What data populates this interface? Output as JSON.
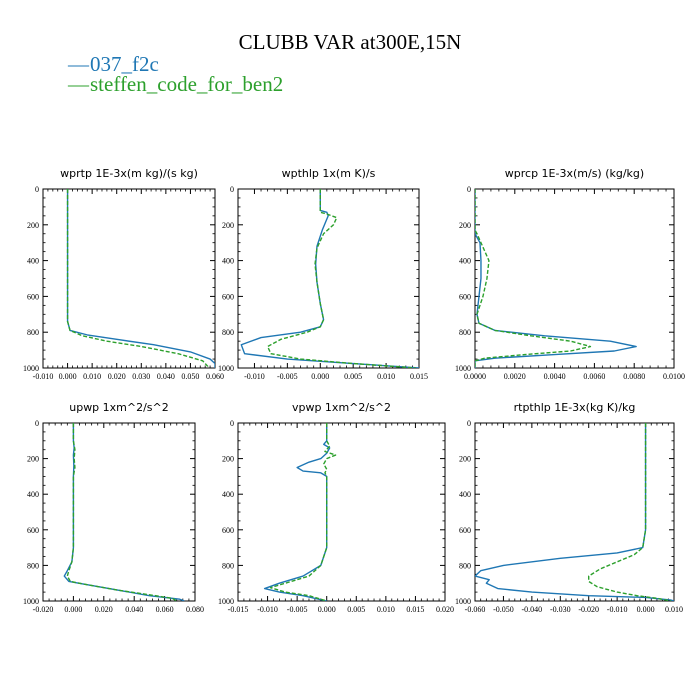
{
  "title": "CLUBB VAR at300E,15N",
  "legend": [
    {
      "label": "037_f2c",
      "color": "#1f77b4"
    },
    {
      "label": "steffen_code_for_ben2",
      "color": "#2ca02c"
    }
  ],
  "chart_data": [
    {
      "type": "line",
      "title": "wprtp  1E-3x(m kg)/(s kg)",
      "xlim": [
        -0.01,
        0.06
      ],
      "ylim": [
        1000,
        0
      ],
      "xticks": [
        "-0.010",
        "0.000",
        "0.010",
        "0.020",
        "0.030",
        "0.040",
        "0.050",
        "0.060"
      ],
      "yticks": [
        "0",
        "200",
        "400",
        "600",
        "800",
        "1000"
      ],
      "series": [
        {
          "name": "037_f2c",
          "color": "#1f77b4",
          "dash": false,
          "points": [
            [
              0,
              0
            ],
            [
              0,
              200
            ],
            [
              0,
              400
            ],
            [
              0,
              600
            ],
            [
              0,
              740
            ],
            [
              0.001,
              790
            ],
            [
              0.008,
              815
            ],
            [
              0.02,
              840
            ],
            [
              0.035,
              870
            ],
            [
              0.05,
              910
            ],
            [
              0.058,
              950
            ],
            [
              0.06,
              975
            ],
            [
              0.06,
              1000
            ]
          ]
        },
        {
          "name": "steffen_code_for_ben2",
          "color": "#2ca02c",
          "dash": true,
          "points": [
            [
              0,
              0
            ],
            [
              0,
              200
            ],
            [
              0,
              400
            ],
            [
              0,
              600
            ],
            [
              0,
              740
            ],
            [
              0.001,
              790
            ],
            [
              0.006,
              820
            ],
            [
              0.016,
              850
            ],
            [
              0.03,
              880
            ],
            [
              0.045,
              920
            ],
            [
              0.055,
              960
            ],
            [
              0.057,
              990
            ],
            [
              0.057,
              1000
            ]
          ]
        }
      ]
    },
    {
      "type": "line",
      "title": "wpthlp  1x(m K)/s",
      "xlim": [
        -0.0125,
        0.015
      ],
      "ylim": [
        1000,
        0
      ],
      "xticks": [
        "-0.010",
        "-0.005",
        "0.000",
        "0.005",
        "0.010",
        "0.015"
      ],
      "yticks": [
        "0",
        "200",
        "400",
        "600",
        "800",
        "1000"
      ],
      "series": [
        {
          "name": "037_f2c",
          "color": "#1f77b4",
          "dash": false,
          "points": [
            [
              0,
              0
            ],
            [
              0,
              120
            ],
            [
              0.001,
              130
            ],
            [
              0.0012,
              150
            ],
            [
              0.0003,
              230
            ],
            [
              -0.0005,
              320
            ],
            [
              -0.0007,
              420
            ],
            [
              -0.0005,
              520
            ],
            [
              0,
              640
            ],
            [
              0.0005,
              730
            ],
            [
              0,
              770
            ],
            [
              -0.003,
              800
            ],
            [
              -0.009,
              830
            ],
            [
              -0.012,
              870
            ],
            [
              -0.0115,
              920
            ],
            [
              -0.005,
              950
            ],
            [
              0.005,
              975
            ],
            [
              0.015,
              1000
            ]
          ]
        },
        {
          "name": "steffen_code_for_ben2",
          "color": "#2ca02c",
          "dash": true,
          "points": [
            [
              0,
              0
            ],
            [
              0,
              130
            ],
            [
              0.001,
              140
            ],
            [
              0.0025,
              160
            ],
            [
              0.002,
              200
            ],
            [
              0.0005,
              250
            ],
            [
              -0.0005,
              330
            ],
            [
              -0.0008,
              420
            ],
            [
              -0.0005,
              520
            ],
            [
              0,
              640
            ],
            [
              0.0005,
              730
            ],
            [
              0,
              770
            ],
            [
              -0.002,
              800
            ],
            [
              -0.006,
              840
            ],
            [
              -0.008,
              880
            ],
            [
              -0.0075,
              920
            ],
            [
              -0.003,
              950
            ],
            [
              0.005,
              975
            ],
            [
              0.0145,
              1000
            ]
          ]
        }
      ]
    },
    {
      "type": "line",
      "title": "wprcp  1E-3x(m/s) (kg/kg)",
      "xlim": [
        0,
        0.01
      ],
      "ylim": [
        1000,
        0
      ],
      "xticks": [
        "0.0000",
        "0.0020",
        "0.0040",
        "0.0060",
        "0.0080",
        "0.0100"
      ],
      "yticks": [
        "0",
        "200",
        "400",
        "600",
        "800",
        "1000"
      ],
      "series": [
        {
          "name": "037_f2c",
          "color": "#1f77b4",
          "dash": false,
          "points": [
            [
              0,
              0
            ],
            [
              0,
              250
            ],
            [
              0.00025,
              300
            ],
            [
              0.0003,
              400
            ],
            [
              0.0003,
              500
            ],
            [
              0.0002,
              600
            ],
            [
              0.0001,
              700
            ],
            [
              0.0002,
              750
            ],
            [
              0.001,
              790
            ],
            [
              0.0035,
              820
            ],
            [
              0.0068,
              850
            ],
            [
              0.0081,
              880
            ],
            [
              0.007,
              905
            ],
            [
              0.004,
              925
            ],
            [
              0.001,
              945
            ],
            [
              0,
              960
            ],
            [
              0,
              1000
            ]
          ]
        },
        {
          "name": "steffen_code_for_ben2",
          "color": "#2ca02c",
          "dash": true,
          "points": [
            [
              0,
              0
            ],
            [
              0,
              230
            ],
            [
              0.0001,
              250
            ],
            [
              0.0005,
              350
            ],
            [
              0.0007,
              400
            ],
            [
              0.0006,
              500
            ],
            [
              0.0004,
              600
            ],
            [
              0.0001,
              700
            ],
            [
              0.0002,
              750
            ],
            [
              0.001,
              790
            ],
            [
              0.0028,
              820
            ],
            [
              0.0048,
              850
            ],
            [
              0.0058,
              880
            ],
            [
              0.0048,
              905
            ],
            [
              0.0025,
              925
            ],
            [
              0.0005,
              945
            ],
            [
              0,
              960
            ],
            [
              0,
              1000
            ]
          ]
        }
      ]
    },
    {
      "type": "line",
      "title": "upwp  1xm^2/s^2",
      "xlim": [
        -0.02,
        0.08
      ],
      "ylim": [
        1000,
        0
      ],
      "xticks": [
        "-0.020",
        "0.000",
        "0.020",
        "0.040",
        "0.060",
        "0.080"
      ],
      "yticks": [
        "0",
        "200",
        "400",
        "600",
        "800",
        "1000"
      ],
      "series": [
        {
          "name": "037_f2c",
          "color": "#1f77b4",
          "dash": false,
          "points": [
            [
              0,
              0
            ],
            [
              0,
              100
            ],
            [
              0.0005,
              140
            ],
            [
              0,
              180
            ],
            [
              0.0003,
              240
            ],
            [
              0,
              300
            ],
            [
              0,
              500
            ],
            [
              0,
              700
            ],
            [
              -0.001,
              780
            ],
            [
              -0.004,
              830
            ],
            [
              -0.006,
              860
            ],
            [
              -0.003,
              890
            ],
            [
              0.01,
              910
            ],
            [
              0.03,
              940
            ],
            [
              0.05,
              970
            ],
            [
              0.07,
              990
            ],
            [
              0.073,
              1000
            ]
          ]
        },
        {
          "name": "steffen_code_for_ben2",
          "color": "#2ca02c",
          "dash": true,
          "points": [
            [
              0,
              0
            ],
            [
              0,
              100
            ],
            [
              0.001,
              150
            ],
            [
              0.0005,
              200
            ],
            [
              0.001,
              250
            ],
            [
              0,
              300
            ],
            [
              0,
              500
            ],
            [
              0,
              700
            ],
            [
              -0.001,
              780
            ],
            [
              -0.003,
              830
            ],
            [
              -0.004,
              860
            ],
            [
              -0.002,
              890
            ],
            [
              0.01,
              910
            ],
            [
              0.03,
              940
            ],
            [
              0.05,
              965
            ],
            [
              0.065,
              985
            ],
            [
              0.068,
              1000
            ]
          ]
        }
      ]
    },
    {
      "type": "line",
      "title": "vpwp  1xm^2/s^2",
      "xlim": [
        -0.015,
        0.02
      ],
      "ylim": [
        1000,
        0
      ],
      "xticks": [
        "-0.015",
        "-0.010",
        "-0.005",
        "0.000",
        "0.005",
        "0.010",
        "0.015",
        "0.020"
      ],
      "yticks": [
        "0",
        "200",
        "400",
        "600",
        "800",
        "1000"
      ],
      "series": [
        {
          "name": "037_f2c",
          "color": "#1f77b4",
          "dash": false,
          "points": [
            [
              0,
              0
            ],
            [
              0,
              100
            ],
            [
              -0.0005,
              120
            ],
            [
              0.0005,
              140
            ],
            [
              0,
              170
            ],
            [
              -0.001,
              200
            ],
            [
              -0.003,
              220
            ],
            [
              -0.005,
              250
            ],
            [
              -0.004,
              270
            ],
            [
              -0.001,
              280
            ],
            [
              0,
              300
            ],
            [
              0,
              500
            ],
            [
              0,
              700
            ],
            [
              -0.001,
              800
            ],
            [
              -0.004,
              860
            ],
            [
              -0.008,
              900
            ],
            [
              -0.0105,
              930
            ],
            [
              -0.008,
              950
            ],
            [
              -0.004,
              970
            ],
            [
              0,
              1000
            ]
          ]
        },
        {
          "name": "steffen_code_for_ben2",
          "color": "#2ca02c",
          "dash": true,
          "points": [
            [
              0,
              0
            ],
            [
              0,
              100
            ],
            [
              0.0005,
              130
            ],
            [
              -0.0003,
              160
            ],
            [
              0.0015,
              180
            ],
            [
              0,
              200
            ],
            [
              -0.0005,
              230
            ],
            [
              0,
              260
            ],
            [
              -0.0003,
              280
            ],
            [
              0,
              300
            ],
            [
              0,
              500
            ],
            [
              0,
              700
            ],
            [
              -0.001,
              800
            ],
            [
              -0.003,
              860
            ],
            [
              -0.007,
              900
            ],
            [
              -0.0095,
              925
            ],
            [
              -0.007,
              950
            ],
            [
              -0.003,
              970
            ],
            [
              0,
              1000
            ]
          ]
        }
      ]
    },
    {
      "type": "line",
      "title": "rtpthlp  1E-3x(kg K)/kg",
      "xlim": [
        -0.06,
        0.01
      ],
      "ylim": [
        1000,
        0
      ],
      "xticks": [
        "-0.060",
        "-0.050",
        "-0.040",
        "-0.030",
        "-0.020",
        "-0.010",
        "0.000",
        "0.010"
      ],
      "yticks": [
        "0",
        "200",
        "400",
        "600",
        "800",
        "1000"
      ],
      "series": [
        {
          "name": "037_f2c",
          "color": "#1f77b4",
          "dash": false,
          "points": [
            [
              0,
              0
            ],
            [
              0,
              200
            ],
            [
              0,
              400
            ],
            [
              0,
              600
            ],
            [
              -0.001,
              700
            ],
            [
              -0.01,
              730
            ],
            [
              -0.03,
              760
            ],
            [
              -0.05,
              800
            ],
            [
              -0.058,
              830
            ],
            [
              -0.06,
              860
            ],
            [
              -0.055,
              880
            ],
            [
              -0.056,
              900
            ],
            [
              -0.052,
              930
            ],
            [
              -0.04,
              950
            ],
            [
              -0.02,
              970
            ],
            [
              0,
              980
            ],
            [
              0.009,
              995
            ],
            [
              0.01,
              1000
            ]
          ]
        },
        {
          "name": "steffen_code_for_ben2",
          "color": "#2ca02c",
          "dash": true,
          "points": [
            [
              0,
              0
            ],
            [
              0,
              200
            ],
            [
              0,
              400
            ],
            [
              0,
              600
            ],
            [
              -0.001,
              700
            ],
            [
              -0.004,
              740
            ],
            [
              -0.01,
              780
            ],
            [
              -0.016,
              820
            ],
            [
              -0.02,
              860
            ],
            [
              -0.02,
              890
            ],
            [
              -0.017,
              920
            ],
            [
              -0.01,
              950
            ],
            [
              -0.003,
              970
            ],
            [
              0.004,
              985
            ],
            [
              0.009,
              1000
            ]
          ]
        }
      ]
    }
  ]
}
